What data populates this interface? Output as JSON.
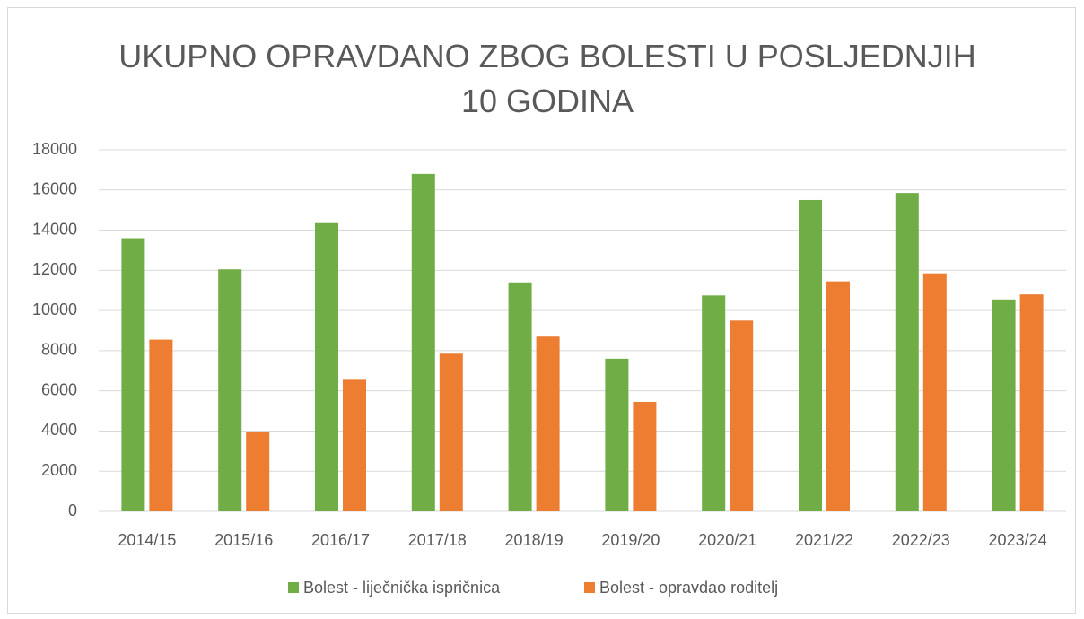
{
  "chart_data": {
    "type": "bar",
    "title": "UKUPNO OPRAVDANO ZBOG BOLESTI U POSLJEDNJIH 10 GODINA",
    "categories": [
      "2014/15",
      "2015/16",
      "2016/17",
      "2017/18",
      "2018/19",
      "2019/20",
      "2020/21",
      "2021/22",
      "2022/23",
      "2023/24"
    ],
    "series": [
      {
        "name": "Bolest - liječnička ispričnica",
        "color": "#70ad47",
        "values": [
          13600,
          12050,
          14350,
          16800,
          11400,
          7600,
          10750,
          15500,
          15850,
          10550
        ]
      },
      {
        "name": "Bolest - opravdao roditelj",
        "color": "#ed7d31",
        "values": [
          8550,
          3950,
          6550,
          7850,
          8700,
          5450,
          9500,
          11450,
          11850,
          10800
        ]
      }
    ],
    "ylim": [
      0,
      18000
    ],
    "yticks": [
      0,
      2000,
      4000,
      6000,
      8000,
      10000,
      12000,
      14000,
      16000,
      18000
    ],
    "grid": true,
    "legend": "bottom"
  }
}
